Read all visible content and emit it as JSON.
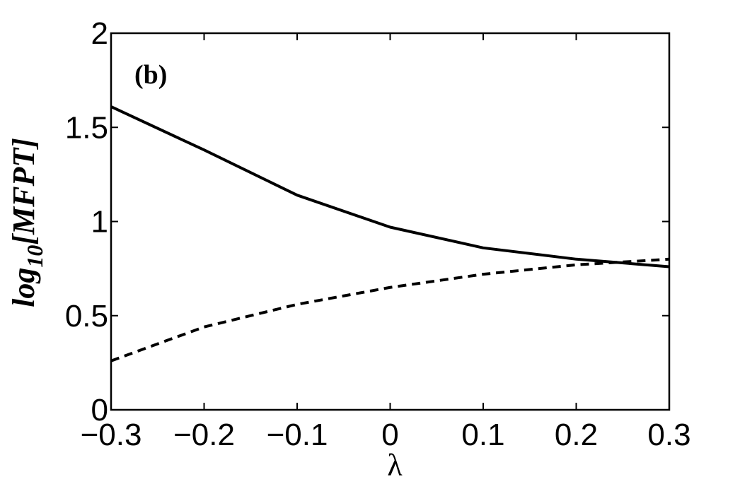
{
  "chart_data": {
    "type": "line",
    "panel_label": "(b)",
    "xlabel": "λ",
    "ylabel_main": "log",
    "ylabel_sub": "10",
    "ylabel_rest": "[MFPT]",
    "xlim": [
      -0.3,
      0.3
    ],
    "ylim": [
      0,
      2
    ],
    "xticks": [
      -0.3,
      -0.2,
      -0.1,
      0,
      0.1,
      0.2,
      0.3
    ],
    "xtick_labels": [
      "−0.3",
      "−0.2",
      "−0.1",
      "0",
      "0.1",
      "0.2",
      "0.3"
    ],
    "yticks": [
      0,
      0.5,
      1,
      1.5,
      2
    ],
    "ytick_labels": [
      "0",
      "0.5",
      "1",
      "1.5",
      "2"
    ],
    "grid": false,
    "series": [
      {
        "style": "solid",
        "x": [
          -0.3,
          -0.2,
          -0.1,
          0,
          0.1,
          0.2,
          0.3
        ],
        "y": [
          1.61,
          1.38,
          1.14,
          0.97,
          0.86,
          0.8,
          0.76
        ]
      },
      {
        "style": "dashed",
        "x": [
          -0.3,
          -0.2,
          -0.1,
          0,
          0.1,
          0.2,
          0.3
        ],
        "y": [
          0.26,
          0.44,
          0.56,
          0.65,
          0.72,
          0.77,
          0.8
        ]
      }
    ]
  }
}
